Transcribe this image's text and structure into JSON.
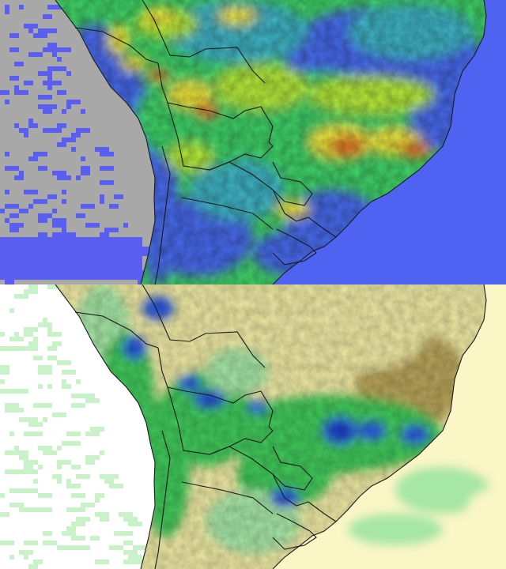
{
  "panels": [
    {
      "id": "top",
      "colors": {
        "ocean_nodata": "#a8a8a8",
        "ocean_speckle": "#5a5ff0",
        "background": "#4f63f2",
        "low": "#4a6cf0",
        "mid_low": "#3fb7c8",
        "mid": "#41d66a",
        "mid_high": "#b8ee3a",
        "high": "#f2e83c",
        "very_high": "#ee8a2a",
        "extreme": "#cc2a1c",
        "border": "#1a1a1a"
      }
    },
    {
      "id": "bottom",
      "colors": {
        "ocean_nodata": "#ffffff",
        "ocean_speckle": "#c9f2c9",
        "background": "#fbf6c6",
        "dry": "#efe9a4",
        "very_dry": "#b7a45a",
        "mid": "#a6e6a6",
        "wet": "#41c85a",
        "very_wet": "#2a56e0",
        "extreme_wet": "#0a2aa8",
        "border": "#1a1a1a"
      }
    }
  ]
}
